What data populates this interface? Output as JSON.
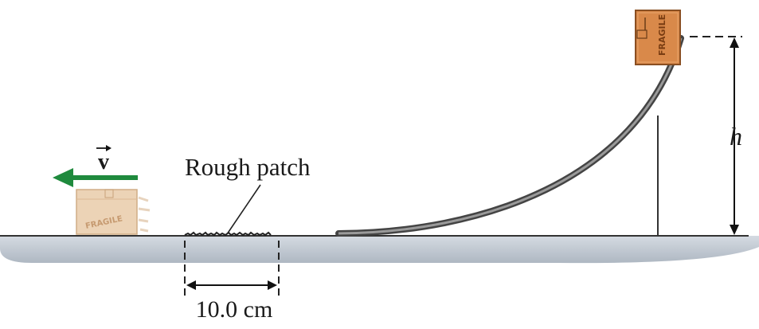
{
  "labels": {
    "velocity_symbol": "v",
    "rough_patch": "Rough patch",
    "patch_length": "10.0 cm",
    "height_symbol": "h"
  },
  "box": {
    "stamp_text": "FRAGILE"
  },
  "colors": {
    "arrow": "#1f8a3d",
    "box_top": "#d9894a",
    "box_moving": "#e9c9a6",
    "ground": "#c7ced6",
    "track": "#555555"
  }
}
